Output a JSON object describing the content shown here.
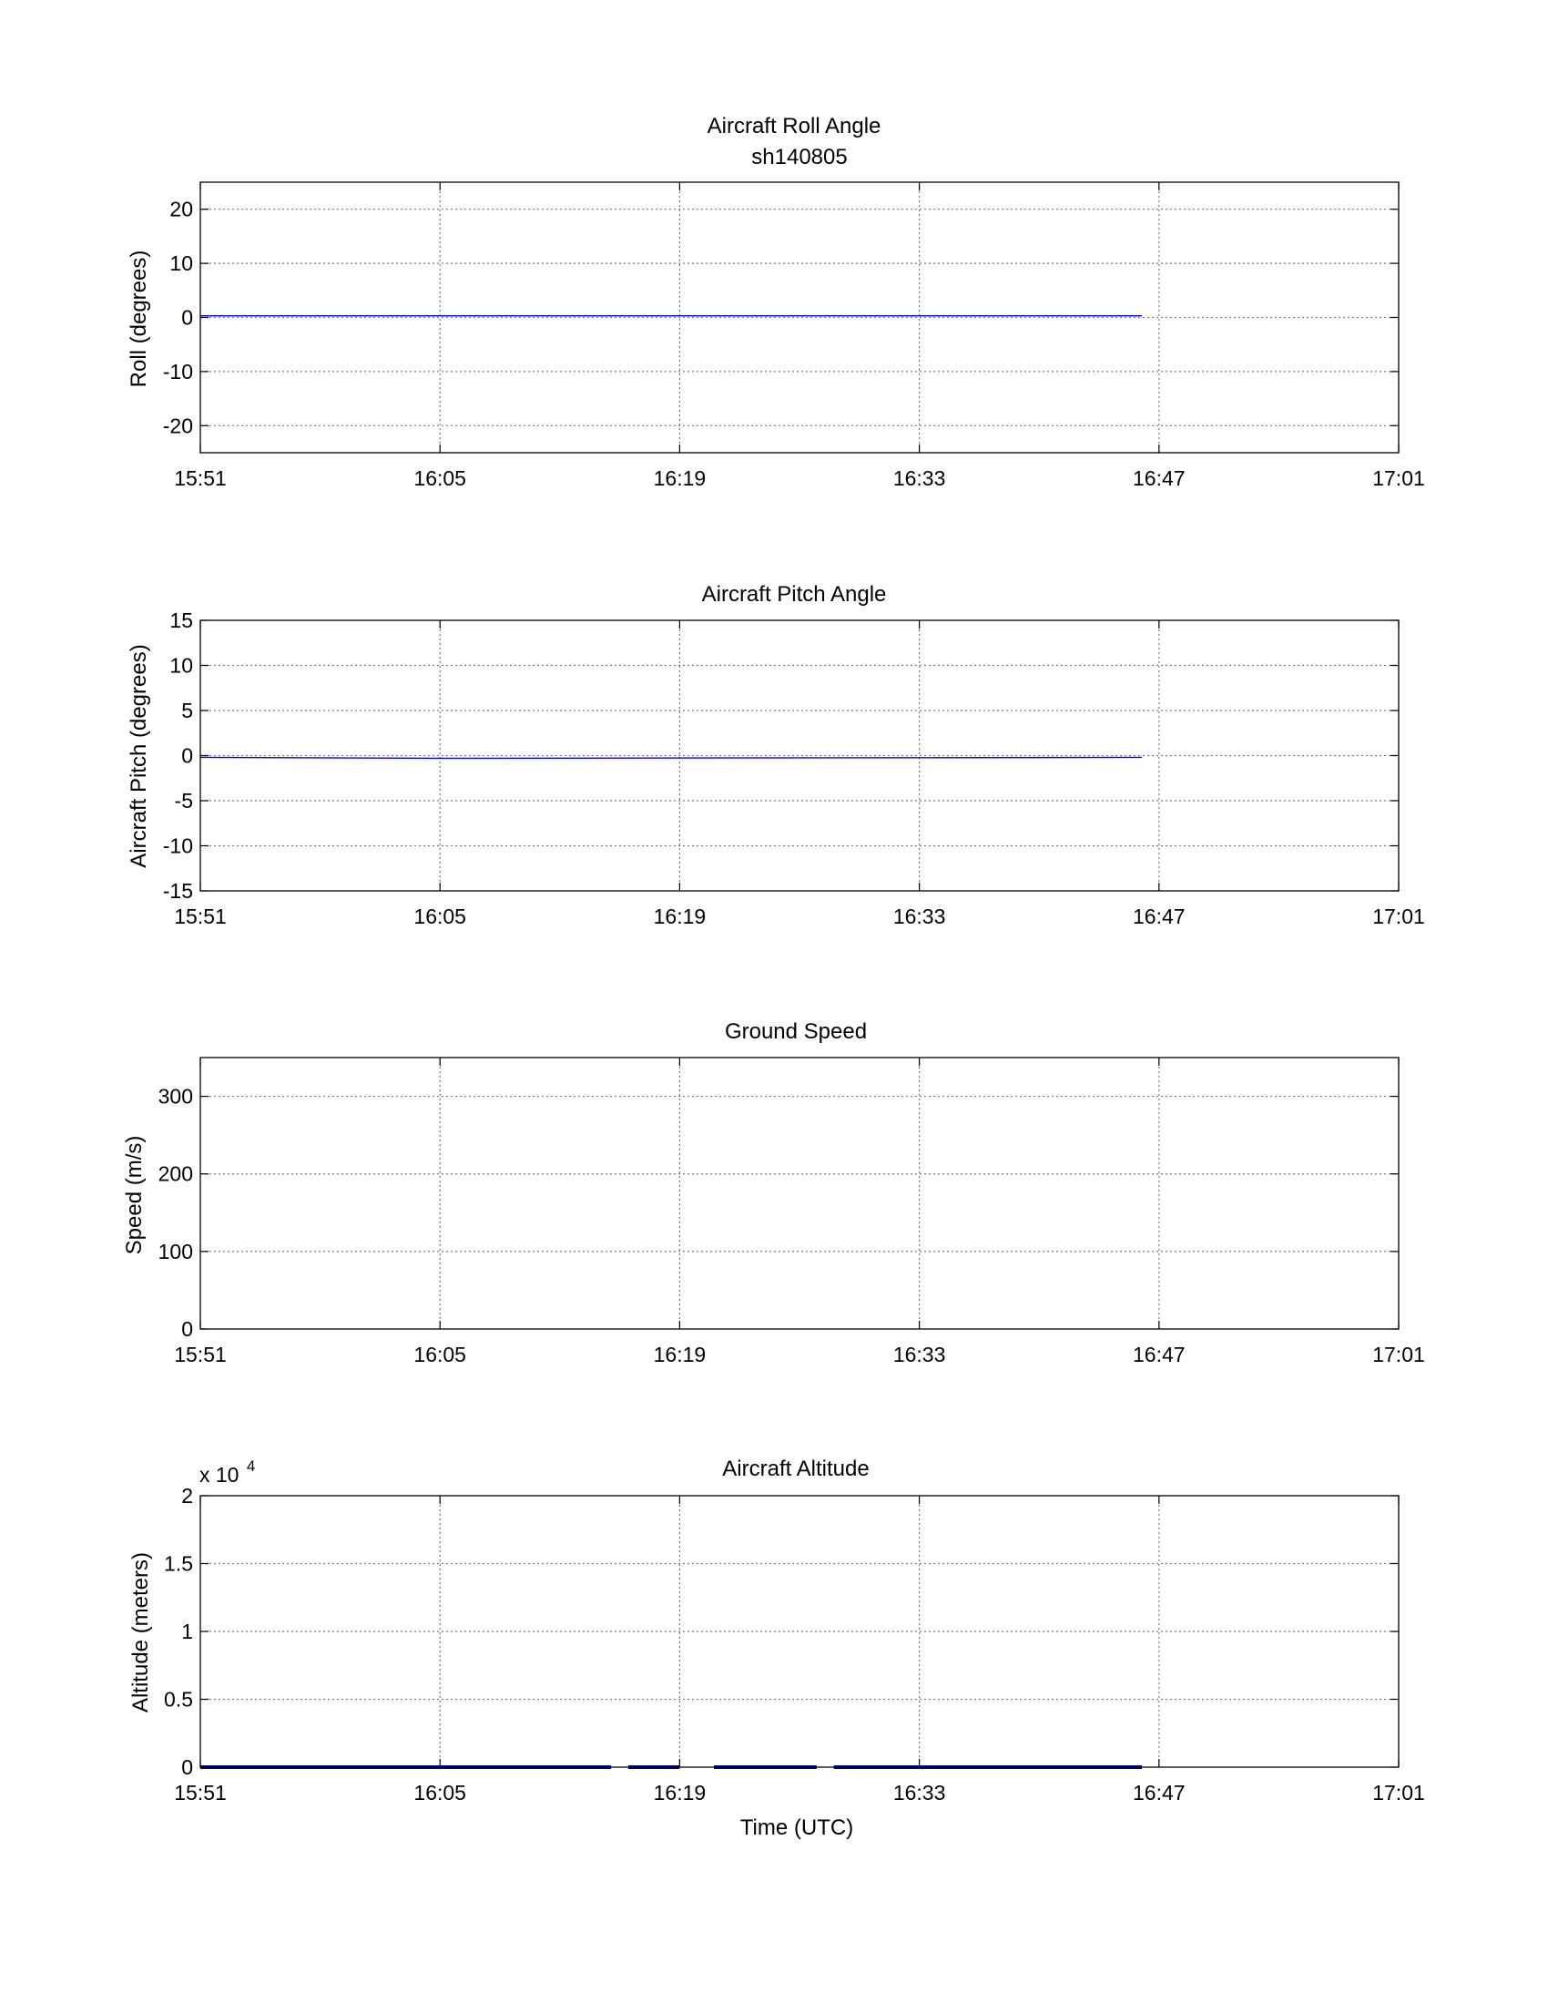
{
  "figure": {
    "xlabel": "Time (UTC)"
  },
  "colors": {
    "series": "#0000ff",
    "altitude_series": "#00008b",
    "grid": "#7a7a7a",
    "axis": "#000000"
  },
  "chart_data": [
    {
      "type": "line",
      "title": "Aircraft Roll Angle",
      "subtitle": "sh140805",
      "xlabel": "",
      "ylabel": "Roll (degrees)",
      "xlim": [
        "15:51",
        "17:01"
      ],
      "xticks": [
        "15:51",
        "16:05",
        "16:19",
        "16:33",
        "16:47",
        "17:01"
      ],
      "ylim": [
        -25,
        25
      ],
      "yticks": [
        -20,
        -10,
        0,
        10,
        20
      ],
      "ytick_labels": [
        "-20",
        "-10",
        "0",
        "10",
        "20"
      ],
      "grid": true,
      "series": [
        {
          "x": [
            "15:51",
            "16:46"
          ],
          "y": [
            0.3,
            0.3
          ]
        }
      ]
    },
    {
      "type": "line",
      "title": "Aircraft Pitch Angle",
      "xlabel": "",
      "ylabel": "Aircraft Pitch (degrees)",
      "xlim": [
        "15:51",
        "17:01"
      ],
      "xticks": [
        "15:51",
        "16:05",
        "16:19",
        "16:33",
        "16:47",
        "17:01"
      ],
      "ylim": [
        -15,
        15
      ],
      "yticks": [
        -15,
        -10,
        -5,
        0,
        5,
        10,
        15
      ],
      "ytick_labels": [
        "-15",
        "-10",
        "-5",
        "0",
        "5",
        "10",
        "15"
      ],
      "grid": true,
      "series": [
        {
          "x": [
            "15:51",
            "16:05",
            "16:46"
          ],
          "y": [
            -0.2,
            -0.3,
            -0.2
          ]
        }
      ]
    },
    {
      "type": "line",
      "title": "Ground Speed",
      "xlabel": "",
      "ylabel": "Speed (m/s)",
      "xlim": [
        "15:51",
        "17:01"
      ],
      "xticks": [
        "15:51",
        "16:05",
        "16:19",
        "16:33",
        "16:47",
        "17:01"
      ],
      "ylim": [
        0,
        350
      ],
      "yticks": [
        0,
        100,
        200,
        300
      ],
      "ytick_labels": [
        "0",
        "100",
        "200",
        "300"
      ],
      "grid": true,
      "series": []
    },
    {
      "type": "scatter",
      "title": "Aircraft Altitude",
      "xlabel": "Time (UTC)",
      "ylabel": "Altitude (meters)",
      "multiplier_label": "x 10",
      "multiplier_exponent": "4",
      "xlim": [
        "15:51",
        "17:01"
      ],
      "xticks": [
        "15:51",
        "16:05",
        "16:19",
        "16:33",
        "16:47",
        "17:01"
      ],
      "ylim": [
        0,
        20000
      ],
      "yticks": [
        0,
        5000,
        10000,
        15000,
        20000
      ],
      "ytick_labels": [
        "0",
        "0.5",
        "1",
        "1.5",
        "2"
      ],
      "grid": true,
      "series": [
        {
          "segments": [
            [
              "15:51",
              "16:06"
            ],
            [
              "16:06",
              "16:11"
            ],
            [
              "16:11",
              "16:15"
            ],
            [
              "16:16",
              "16:19"
            ],
            [
              "16:21",
              "16:27"
            ],
            [
              "16:28",
              "16:33"
            ],
            [
              "16:33",
              "16:46"
            ]
          ],
          "y": 0
        }
      ]
    }
  ]
}
